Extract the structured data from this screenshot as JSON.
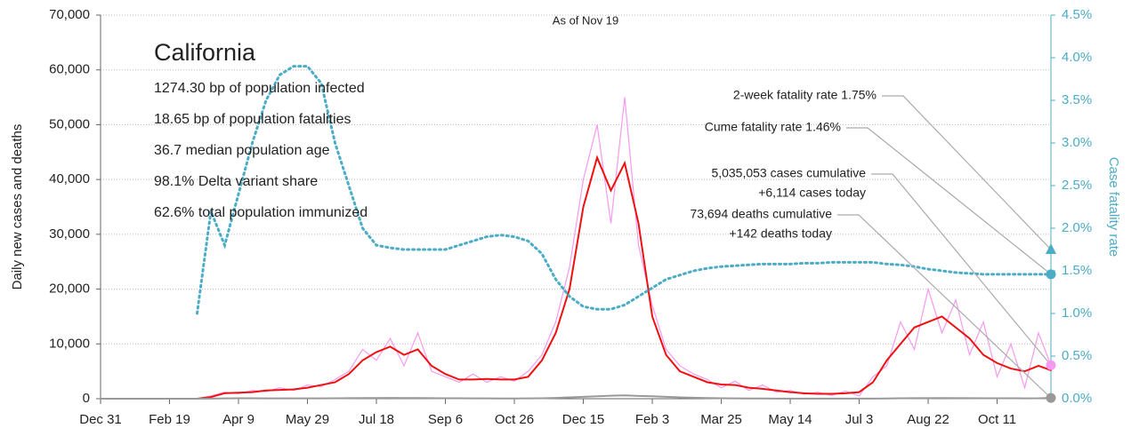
{
  "chart_data": {
    "type": "line",
    "title": "California",
    "subtitle": "As of Nov 19",
    "notes": [
      "1274.30 bp of population infected",
      "18.65 bp of population fatalities",
      "36.7 median population age",
      "98.1% Delta variant share",
      "62.6% total population immunized"
    ],
    "callouts": [
      [
        "2-week fatality rate 1.75%"
      ],
      [
        "Cume fatality rate 1.46%"
      ],
      [
        "5,035,053 cases cumulative",
        "+6,114 cases today"
      ],
      [
        "73,694 deaths cumulative",
        "+142 deaths today"
      ]
    ],
    "y_label": "Daily new cases and deaths",
    "y2_label": "Case fatality rate",
    "xlim": [
      0,
      689
    ],
    "xticks": [
      {
        "value": 0,
        "label": "Dec 31"
      },
      {
        "value": 50,
        "label": "Feb 19"
      },
      {
        "value": 100,
        "label": "Apr 9"
      },
      {
        "value": 150,
        "label": "May 29"
      },
      {
        "value": 200,
        "label": "Jul 18"
      },
      {
        "value": 250,
        "label": "Sep 6"
      },
      {
        "value": 300,
        "label": "Oct 26"
      },
      {
        "value": 350,
        "label": "Dec 15"
      },
      {
        "value": 400,
        "label": "Feb 3"
      },
      {
        "value": 450,
        "label": "Mar 25"
      },
      {
        "value": 500,
        "label": "May 14"
      },
      {
        "value": 550,
        "label": "Jul 3"
      },
      {
        "value": 600,
        "label": "Aug 22"
      },
      {
        "value": 650,
        "label": "Oct 11"
      }
    ],
    "ylim": [
      0,
      70000
    ],
    "yticks": [
      {
        "value": 0,
        "label": "0"
      },
      {
        "value": 10000,
        "label": "10,000"
      },
      {
        "value": 20000,
        "label": "20,000"
      },
      {
        "value": 30000,
        "label": "30,000"
      },
      {
        "value": 40000,
        "label": "40,000"
      },
      {
        "value": 50000,
        "label": "50,000"
      },
      {
        "value": 60000,
        "label": "60,000"
      },
      {
        "value": 70000,
        "label": "70,000"
      }
    ],
    "y2lim": [
      0,
      4.5
    ],
    "y2ticks": [
      {
        "value": 0,
        "label": "0.0%"
      },
      {
        "value": 0.5,
        "label": "0.5%"
      },
      {
        "value": 1,
        "label": "1.0%"
      },
      {
        "value": 1.5,
        "label": "1.5%"
      },
      {
        "value": 2,
        "label": "2.0%"
      },
      {
        "value": 2.5,
        "label": "2.5%"
      },
      {
        "value": 3,
        "label": "3.0%"
      },
      {
        "value": 3.5,
        "label": "3.5%"
      },
      {
        "value": 4,
        "label": "4.0%"
      },
      {
        "value": 4.5,
        "label": "4.5%"
      }
    ],
    "grid": true,
    "x": [
      0,
      10,
      20,
      30,
      40,
      50,
      60,
      70,
      80,
      90,
      100,
      110,
      120,
      130,
      140,
      150,
      160,
      170,
      180,
      190,
      200,
      210,
      220,
      230,
      240,
      250,
      260,
      270,
      280,
      290,
      300,
      310,
      320,
      330,
      340,
      350,
      360,
      370,
      380,
      390,
      400,
      410,
      420,
      430,
      440,
      450,
      460,
      470,
      480,
      490,
      500,
      510,
      520,
      530,
      540,
      550,
      560,
      570,
      580,
      590,
      600,
      610,
      620,
      630,
      640,
      650,
      660,
      670,
      680,
      689
    ],
    "series": [
      {
        "color": "#f59af0",
        "width": 1.2,
        "dash": false,
        "values": [
          0,
          0,
          0,
          0,
          0,
          0,
          0,
          0,
          500,
          1200,
          900,
          1500,
          1300,
          2000,
          1500,
          2500,
          2200,
          3500,
          5000,
          9000,
          7000,
          11000,
          6000,
          12000,
          5000,
          4000,
          3000,
          4500,
          3000,
          4000,
          3200,
          5000,
          8000,
          14000,
          24000,
          40000,
          50000,
          32000,
          55000,
          28000,
          17000,
          9000,
          6000,
          4500,
          3500,
          2000,
          3200,
          1500,
          2500,
          1200,
          1500,
          800,
          1200,
          600,
          1400,
          500,
          4000,
          6000,
          14000,
          9000,
          20000,
          12000,
          18000,
          8000,
          14000,
          4000,
          10000,
          2000,
          12000,
          6114
        ]
      },
      {
        "color": "#ee1111",
        "width": 2,
        "dash": false,
        "values": [
          0,
          0,
          0,
          0,
          0,
          0,
          0,
          0,
          300,
          1000,
          1100,
          1200,
          1500,
          1600,
          1700,
          2000,
          2500,
          3000,
          4500,
          7000,
          8500,
          9500,
          8000,
          9000,
          6000,
          4500,
          3500,
          3500,
          3600,
          3500,
          3500,
          4000,
          7000,
          12000,
          20000,
          35000,
          44000,
          38000,
          43000,
          32000,
          15000,
          8000,
          5000,
          4000,
          3000,
          2600,
          2500,
          2000,
          1800,
          1500,
          1200,
          1000,
          900,
          900,
          1000,
          1200,
          3000,
          7000,
          10000,
          13000,
          14000,
          15000,
          13000,
          11000,
          8000,
          6500,
          5500,
          5000,
          6000,
          5200
        ]
      },
      {
        "color": "#999999",
        "width": 2,
        "dash": false,
        "values": [
          0,
          0,
          0,
          0,
          0,
          0,
          0,
          0,
          20,
          60,
          80,
          80,
          70,
          70,
          60,
          60,
          60,
          80,
          100,
          120,
          130,
          140,
          130,
          120,
          110,
          90,
          80,
          70,
          60,
          50,
          50,
          60,
          80,
          150,
          250,
          350,
          450,
          550,
          600,
          500,
          450,
          350,
          250,
          180,
          120,
          90,
          70,
          50,
          40,
          30,
          25,
          20,
          20,
          20,
          20,
          25,
          30,
          50,
          80,
          100,
          110,
          120,
          110,
          100,
          90,
          80,
          80,
          70,
          80,
          142
        ]
      },
      {
        "color": "#4bacc6",
        "width": 3,
        "dash": true,
        "axis": "y2",
        "values": [
          null,
          null,
          null,
          null,
          null,
          null,
          null,
          1.0,
          2.2,
          1.8,
          2.4,
          3.0,
          3.5,
          3.8,
          3.9,
          3.9,
          3.7,
          3.0,
          2.5,
          2.0,
          1.8,
          1.77,
          1.75,
          1.75,
          1.75,
          1.75,
          1.8,
          1.85,
          1.9,
          1.92,
          1.9,
          1.85,
          1.7,
          1.4,
          1.2,
          1.08,
          1.05,
          1.05,
          1.1,
          1.2,
          1.3,
          1.4,
          1.45,
          1.5,
          1.53,
          1.55,
          1.56,
          1.57,
          1.58,
          1.58,
          1.58,
          1.59,
          1.59,
          1.6,
          1.6,
          1.6,
          1.6,
          1.58,
          1.57,
          1.55,
          1.52,
          1.5,
          1.48,
          1.47,
          1.46,
          1.46,
          1.46,
          1.46,
          1.46,
          1.46
        ]
      }
    ],
    "markers": [
      {
        "value": 1.75,
        "axis": "y2",
        "color": "#4bacc6",
        "shape": "triangle"
      },
      {
        "value": 1.46,
        "axis": "y2",
        "color": "#4bacc6",
        "shape": "circle"
      },
      {
        "value": 6114,
        "color": "#f59af0",
        "shape": "circle"
      },
      {
        "value": 142,
        "color": "#999999",
        "shape": "circle"
      }
    ]
  }
}
